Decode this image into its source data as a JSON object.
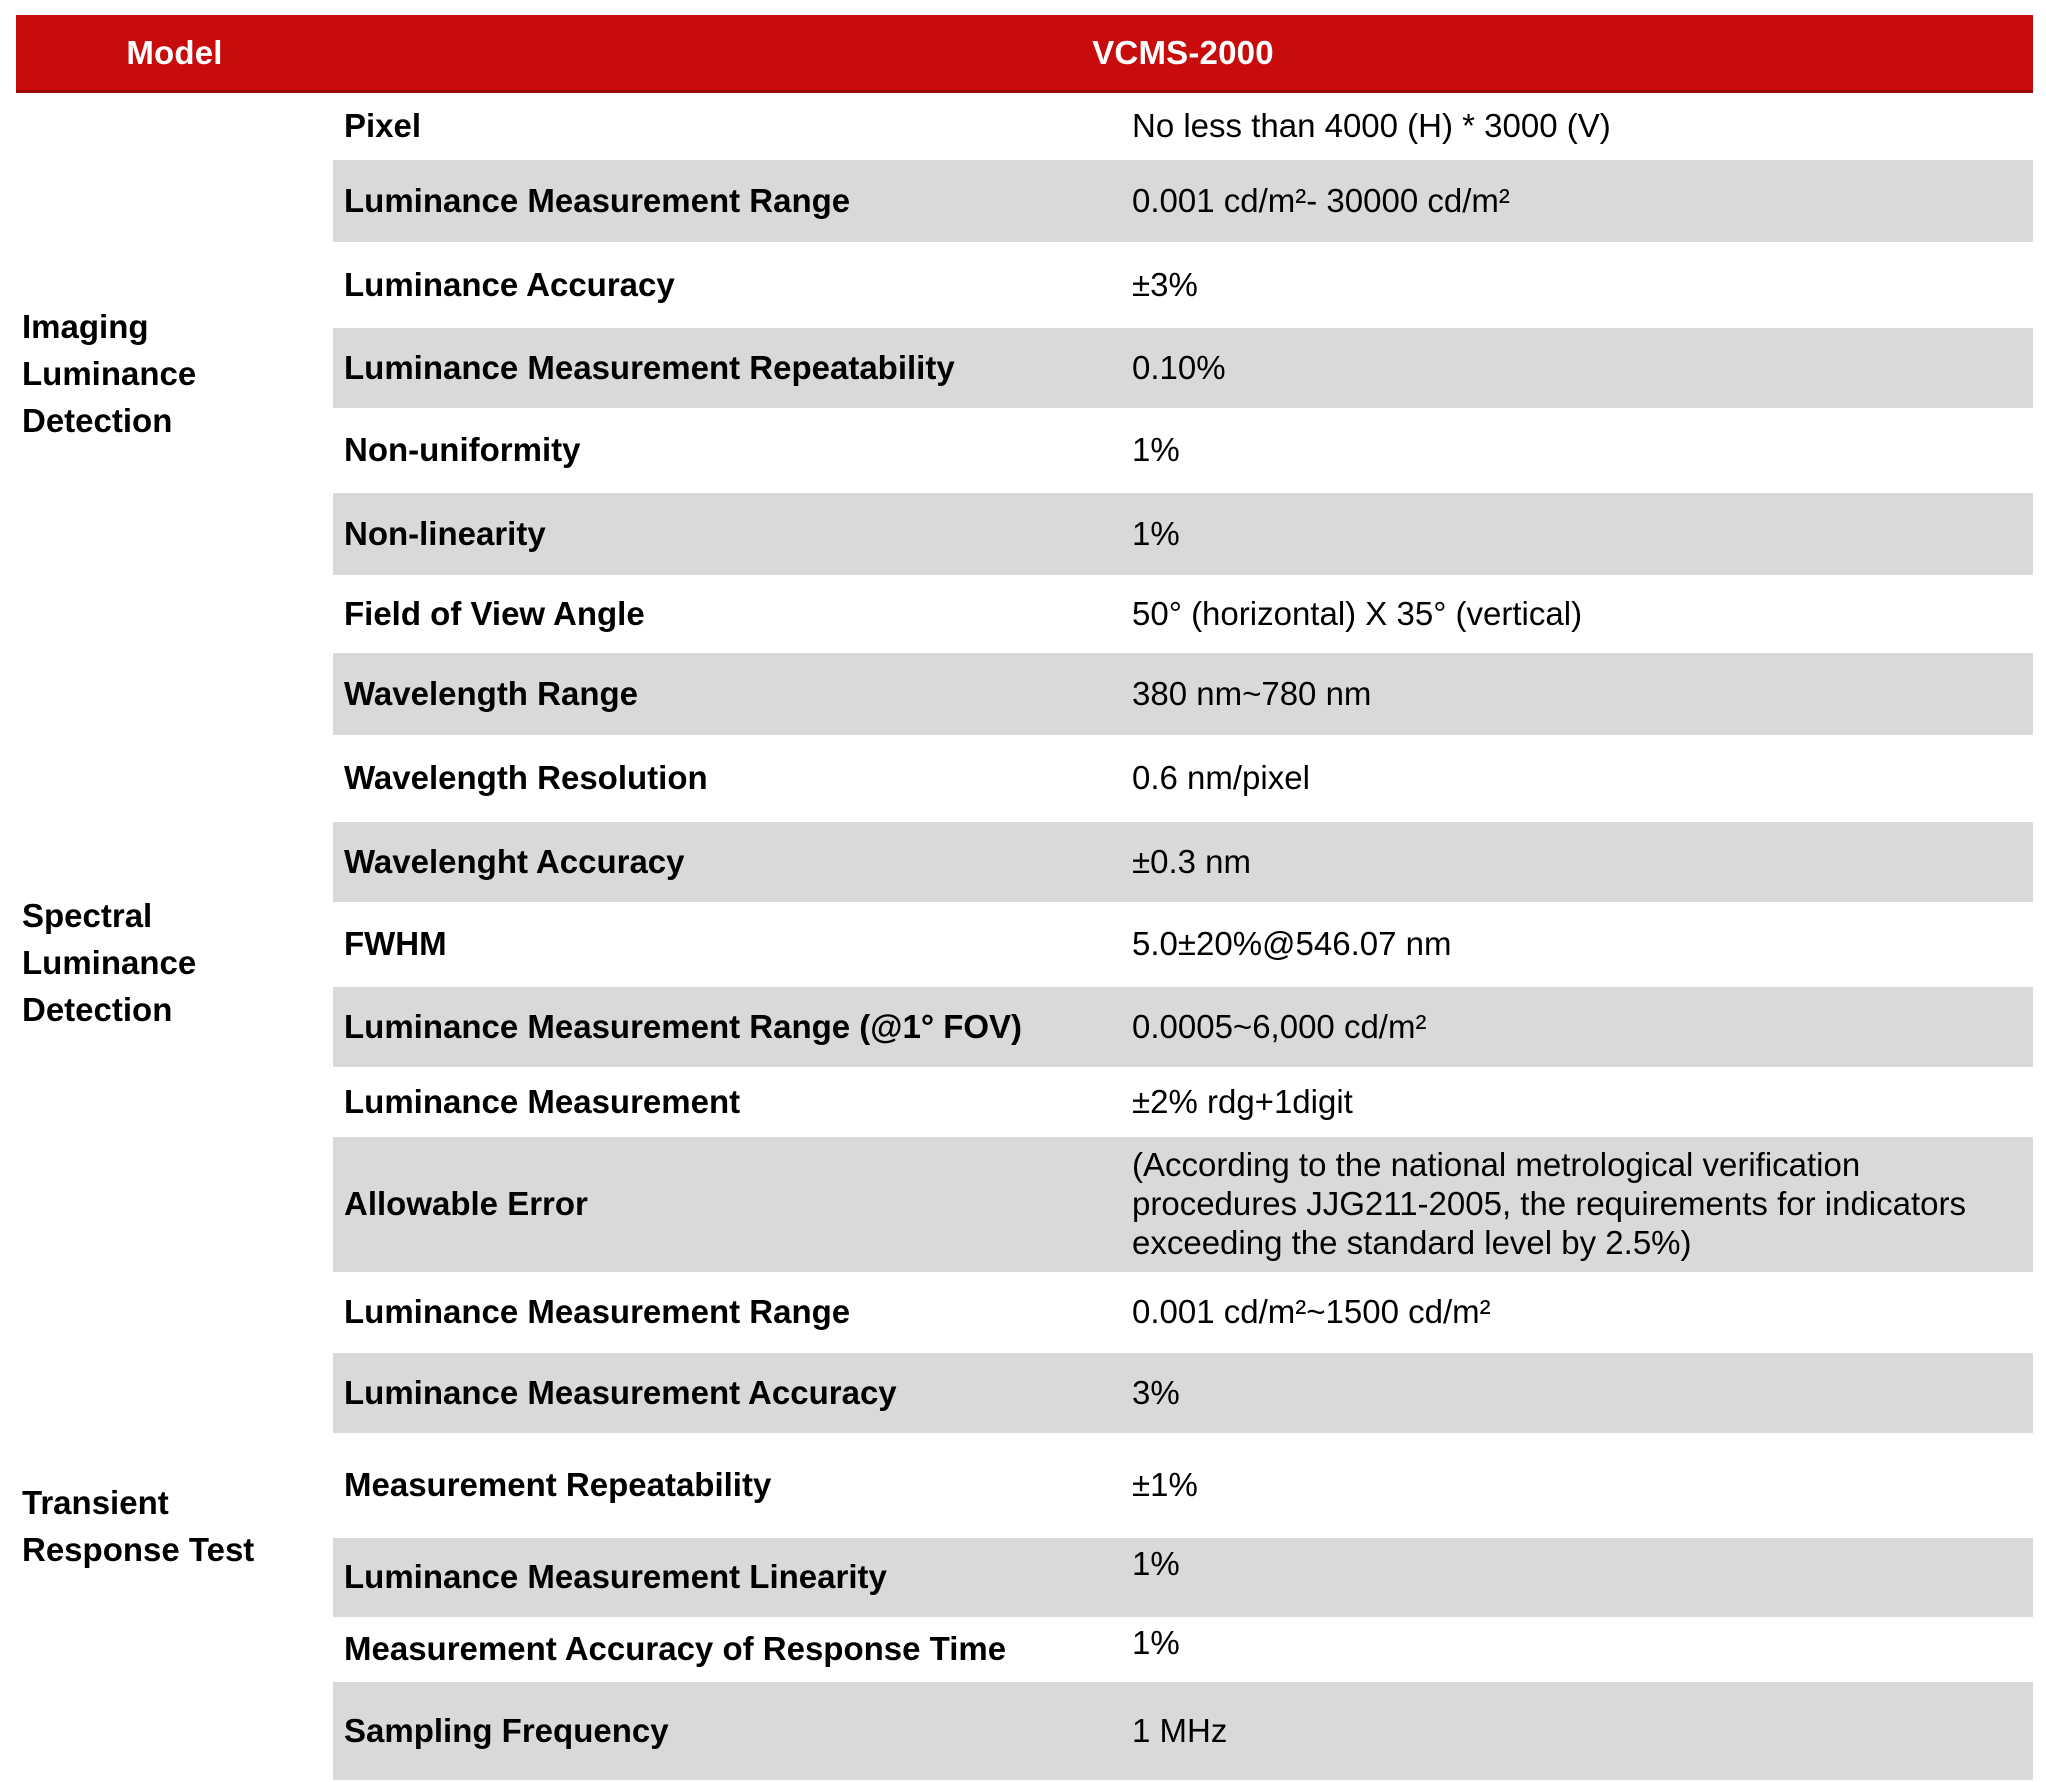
{
  "header": {
    "model_label": "Model",
    "model_value": "VCMS-2000"
  },
  "groups": [
    {
      "label_lines": [
        "Imaging",
        "Luminance",
        "Detection"
      ],
      "row_span": 7
    },
    {
      "label_lines": [
        "Spectral",
        "Luminance",
        "Detection"
      ],
      "row_span": 7
    },
    {
      "label_lines": [
        "Transient",
        "Response Test"
      ],
      "row_span": 6
    }
  ],
  "rows": [
    {
      "label": "Pixel",
      "value": "No less than 4000 (H) * 3000 (V)"
    },
    {
      "label": "Luminance Measurement Range",
      "value": "0.001 cd/m²- 30000 cd/m²"
    },
    {
      "label": "Luminance Accuracy",
      "value": "±3%"
    },
    {
      "label": "Luminance Measurement Repeatability",
      "value": "0.10%"
    },
    {
      "label": "Non-uniformity",
      "value": "1%"
    },
    {
      "label": "Non-linearity",
      "value": "1%"
    },
    {
      "label": "Field of View Angle",
      "value": "50° (horizontal) X 35° (vertical)"
    },
    {
      "label": "Wavelength Range",
      "value": "380 nm~780 nm"
    },
    {
      "label": "Wavelength Resolution",
      "value": "0.6 nm/pixel"
    },
    {
      "label": "Wavelenght Accuracy",
      "value": "±0.3 nm"
    },
    {
      "label": "FWHM",
      "value": "5.0±20%@546.07 nm"
    },
    {
      "label": "Luminance Measurement Range (@1° FOV)",
      "value": "0.0005~6,000 cd/m²"
    },
    {
      "label": "Luminance Measurement",
      "value": "±2% rdg+1digit"
    },
    {
      "label": "Allowable Error",
      "value": "(According to the national metrological verification procedures JJG211-2005, the requirements for indicators exceeding the standard level by 2.5%)"
    },
    {
      "label": "Luminance Measurement Range",
      "value": "0.001 cd/m²~1500 cd/m²"
    },
    {
      "label": "Luminance Measurement Accuracy",
      "value": "3%"
    },
    {
      "label": "Measurement Repeatability",
      "value": "±1%"
    },
    {
      "label": "Luminance Measurement Linearity",
      "value": "1%",
      "value_raised": true
    },
    {
      "label": "Measurement Accuracy of Response Time",
      "value": "1%",
      "value_raised": true
    },
    {
      "label": "Sampling Frequency",
      "value": "1 MHz"
    }
  ],
  "colors": {
    "header_bg": "#c80b0b",
    "header_edge": "#9a0808",
    "header_text": "#ffffff",
    "row_alt_bg": "#d9d9d9",
    "body_text": "#000000"
  }
}
